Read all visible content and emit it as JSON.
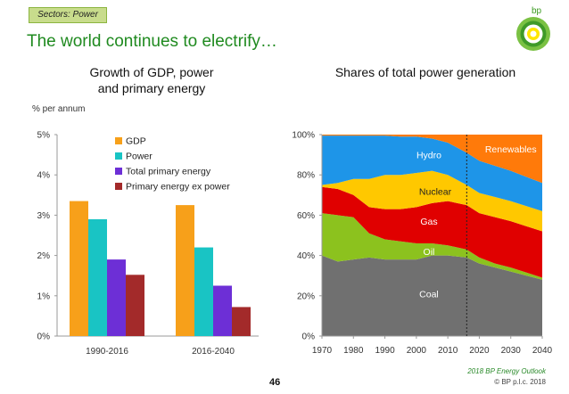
{
  "tag": "Sectors: Power",
  "logo_text": "bp",
  "title": "The world continues to electrify…",
  "page_number": "46",
  "footer": {
    "source": "2018 BP Energy Outlook",
    "copyright": "© BP p.l.c. 2018"
  },
  "colors": {
    "title": "#1f8a1f",
    "gdp": "#f7a01a",
    "power": "#19c4c4",
    "tpe": "#6d2fd6",
    "pe_ex_power": "#a32a2a",
    "coal": "#707070",
    "oil": "#8cc21e",
    "gas": "#e00000",
    "nuclear": "#ffc800",
    "hydro": "#1e95e8",
    "renewables": "#ff7a0a"
  },
  "chart_data": [
    {
      "type": "bar",
      "title": "Growth of GDP, power and primary energy",
      "title_lines": [
        "Growth of GDP, power",
        "and primary energy"
      ],
      "ylabel": "% per annum",
      "ylim": [
        0,
        5
      ],
      "yticks": [
        "0%",
        "1%",
        "2%",
        "3%",
        "4%",
        "5%"
      ],
      "categories": [
        "1990-2016",
        "2016-2040"
      ],
      "series": [
        {
          "name": "GDP",
          "color": "#f7a01a",
          "values": [
            3.35,
            3.25
          ]
        },
        {
          "name": "Power",
          "color": "#19c4c4",
          "values": [
            2.9,
            2.2
          ]
        },
        {
          "name": "Total primary energy",
          "color": "#6d2fd6",
          "values": [
            1.9,
            1.25
          ]
        },
        {
          "name": "Primary energy ex power",
          "color": "#a32a2a",
          "values": [
            1.52,
            0.72
          ]
        }
      ],
      "legend": "top-right",
      "grid": false
    },
    {
      "type": "area",
      "title": "Shares of total power generation",
      "stacked": true,
      "ylim": [
        0,
        100
      ],
      "yticks": [
        "0%",
        "20%",
        "40%",
        "60%",
        "80%",
        "100%"
      ],
      "xlim": [
        1970,
        2040
      ],
      "xticks": [
        "1970",
        "1980",
        "1990",
        "2000",
        "2010",
        "2020",
        "2030",
        "2040"
      ],
      "divider_x": 2016,
      "x": [
        1970,
        1975,
        1980,
        1985,
        1990,
        1995,
        2000,
        2005,
        2010,
        2016,
        2020,
        2025,
        2030,
        2035,
        2040
      ],
      "series": [
        {
          "name": "Coal",
          "color": "#707070",
          "values": [
            40,
            37,
            38,
            39,
            38,
            38,
            38,
            40,
            40,
            39,
            36,
            34,
            32,
            30,
            28
          ]
        },
        {
          "name": "Oil",
          "color": "#8cc21e",
          "values": [
            21,
            23,
            21,
            12,
            10,
            9,
            8,
            6,
            5,
            4,
            3,
            2,
            2,
            1.5,
            1
          ]
        },
        {
          "name": "Gas",
          "color": "#e00000",
          "values": [
            13,
            13,
            11,
            13,
            15,
            16,
            18,
            20,
            22,
            22,
            22,
            23,
            23,
            23,
            23
          ]
        },
        {
          "name": "Nuclear",
          "color": "#ffc800",
          "values": [
            1,
            3,
            8,
            14,
            17,
            17,
            17,
            16,
            13,
            10,
            10,
            10,
            10,
            10,
            10
          ]
        },
        {
          "name": "Hydro",
          "color": "#1e95e8",
          "values": [
            24.5,
            23.5,
            21.5,
            21.5,
            19.5,
            19,
            18,
            16,
            16,
            16,
            16,
            15.5,
            15,
            14.5,
            14
          ]
        },
        {
          "name": "Renewables",
          "color": "#ff7a0a",
          "values": [
            0.5,
            0.5,
            0.5,
            0.5,
            0.5,
            1,
            1,
            2,
            4,
            9,
            13,
            15.5,
            18,
            21,
            24
          ]
        }
      ],
      "labels": [
        {
          "text": "Coal",
          "series": "Coal",
          "x": 2004,
          "y": 21
        },
        {
          "text": "Oil",
          "series": "Oil",
          "x": 2004,
          "y": 42
        },
        {
          "text": "Gas",
          "series": "Gas",
          "x": 2004,
          "y": 57
        },
        {
          "text": "Nuclear",
          "series": "Nuclear",
          "x": 2006,
          "y": 72
        },
        {
          "text": "Hydro",
          "series": "Hydro",
          "x": 2004,
          "y": 90
        },
        {
          "text": "Renewables",
          "series": "Renewables",
          "x": 2030,
          "y": 93
        }
      ],
      "grid": false
    }
  ]
}
